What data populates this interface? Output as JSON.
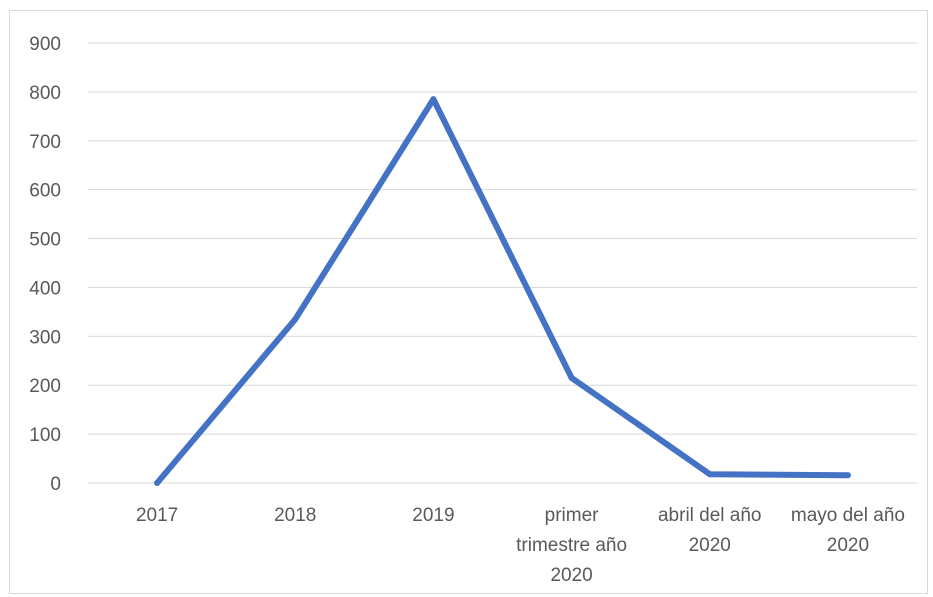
{
  "chart_data": {
    "type": "line",
    "categories": [
      [
        "2017"
      ],
      [
        "2018"
      ],
      [
        "2019"
      ],
      [
        "primer",
        "trimestre año",
        "2020"
      ],
      [
        "abril del año",
        "2020"
      ],
      [
        "mayo del año",
        "2020"
      ]
    ],
    "series": [
      {
        "values": [
          0,
          335,
          785,
          215,
          18,
          16
        ],
        "color": "#4472c4"
      }
    ],
    "ylim": [
      0,
      900
    ],
    "yticks": [
      0,
      100,
      200,
      300,
      400,
      500,
      600,
      700,
      800,
      900
    ],
    "grid": true,
    "gridColor": "#d9d9d9",
    "title": "",
    "xlabel": "",
    "ylabel": ""
  }
}
